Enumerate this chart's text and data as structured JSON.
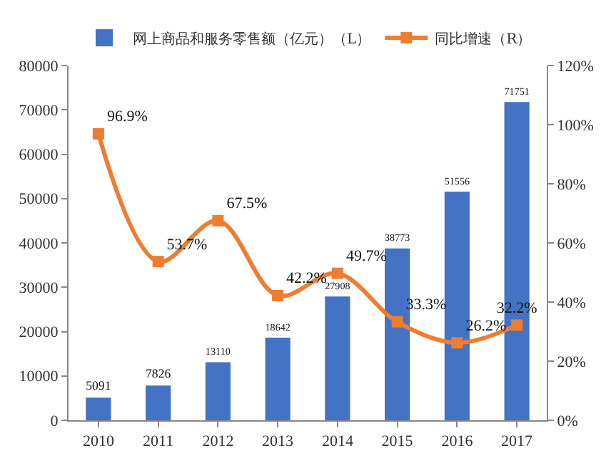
{
  "chart_data": {
    "type": "bar",
    "categories": [
      "2010",
      "2011",
      "2012",
      "2013",
      "2014",
      "2015",
      "2016",
      "2017"
    ],
    "series": [
      {
        "name": "网上商品和服务零售额（亿元）（L）",
        "color": "#4472c4",
        "values": [
          5091,
          7826,
          13110,
          18642,
          27908,
          38773,
          51556,
          71751
        ],
        "value_labels": [
          "5091",
          "7826",
          "13110",
          "18642",
          "27908",
          "38773",
          "51556",
          "71751"
        ]
      },
      {
        "name": "同比增速（R）",
        "type": "line",
        "axis": "y2",
        "color": "#ed7d31",
        "marker": "square",
        "values": [
          96.9,
          53.7,
          67.5,
          42.2,
          49.7,
          33.3,
          26.2,
          32.2
        ],
        "value_labels": [
          "96.9%",
          "53.7%",
          "67.5%",
          "42.2%",
          "49.7%",
          "33.3%",
          "26.2%",
          "32.2%"
        ]
      }
    ],
    "ylim": [
      0,
      80000
    ],
    "yticks": [
      0,
      10000,
      20000,
      30000,
      40000,
      50000,
      60000,
      70000,
      80000
    ],
    "y2lim": [
      0,
      120
    ],
    "y2ticks": [
      {
        "value": 0,
        "label": "0%"
      },
      {
        "value": 20,
        "label": "20%"
      },
      {
        "value": 40,
        "label": "40%"
      },
      {
        "value": 60,
        "label": "60%"
      },
      {
        "value": 80,
        "label": "80%"
      },
      {
        "value": 100,
        "label": "100%"
      },
      {
        "value": 120,
        "label": "120%"
      }
    ],
    "legend": "top",
    "grid": false
  }
}
